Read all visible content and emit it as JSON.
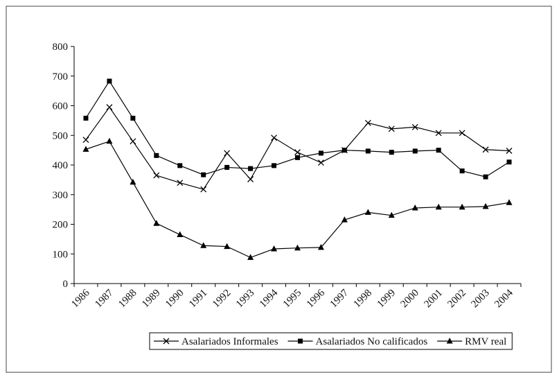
{
  "chart_data": {
    "type": "line",
    "categories": [
      "1986",
      "1987",
      "1988",
      "1989",
      "1990",
      "1991",
      "1992",
      "1993",
      "1994",
      "1995",
      "1996",
      "1997",
      "1998",
      "1999",
      "2000",
      "2001",
      "2002",
      "2003",
      "2004"
    ],
    "series": [
      {
        "name": "Asalariados Informales",
        "color": "#000000",
        "marker": "x",
        "values": [
          485,
          595,
          480,
          365,
          340,
          318,
          440,
          352,
          492,
          443,
          408,
          450,
          542,
          522,
          528,
          508,
          508,
          452,
          448
        ]
      },
      {
        "name": "Asalariados No calificados",
        "color": "#000000",
        "marker": "square",
        "values": [
          558,
          683,
          558,
          432,
          398,
          367,
          392,
          388,
          398,
          425,
          440,
          450,
          447,
          443,
          447,
          450,
          380,
          360,
          410
        ]
      },
      {
        "name": "RMV real",
        "color": "#000000",
        "marker": "triangle",
        "values": [
          453,
          480,
          342,
          203,
          165,
          128,
          125,
          88,
          117,
          120,
          122,
          215,
          240,
          230,
          255,
          258,
          258,
          260,
          273
        ]
      }
    ],
    "ylim": [
      0,
      800
    ],
    "yticks": [
      0,
      100,
      200,
      300,
      400,
      500,
      600,
      700,
      800
    ],
    "grid": false,
    "legend": "bottom"
  }
}
